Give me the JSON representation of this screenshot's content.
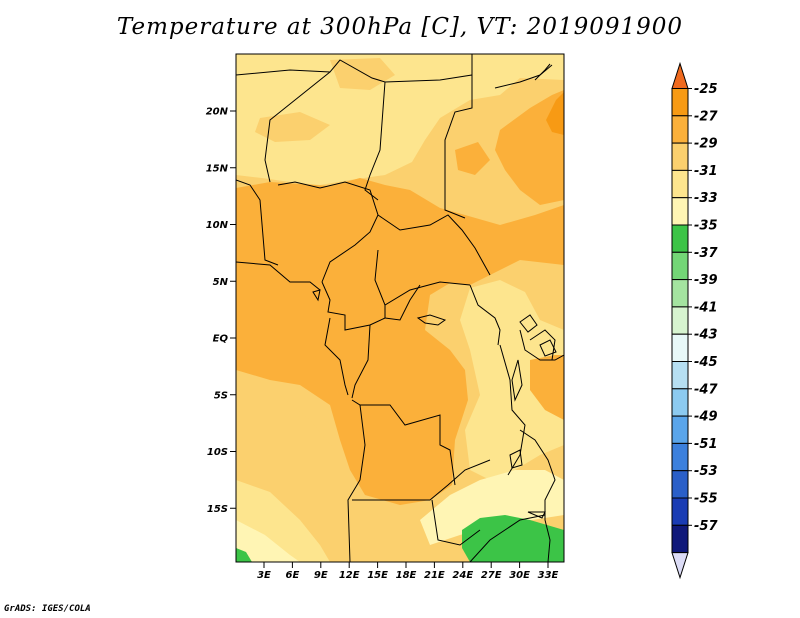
{
  "title": "Temperature at 300hPa [C], VT: 2019091900",
  "credit": "GrADS: IGES/COLA",
  "map": {
    "lat_ticks": [
      "20N",
      "15N",
      "10N",
      "5N",
      "EQ",
      "5S",
      "10S",
      "15S"
    ],
    "lon_ticks": [
      "3E",
      "6E",
      "9E",
      "12E",
      "15E",
      "18E",
      "21E",
      "24E",
      "27E",
      "30E",
      "33E"
    ]
  },
  "colorbar": {
    "labels": [
      "-25",
      "-27",
      "-29",
      "-31",
      "-33",
      "-35",
      "-37",
      "-39",
      "-41",
      "-43",
      "-45",
      "-47",
      "-49",
      "-51",
      "-53",
      "-55",
      "-57"
    ],
    "colors": [
      "#f06a1e",
      "#f79a14",
      "#fbb03a",
      "#fbd06e",
      "#fde58e",
      "#fff5b4",
      "#3cc447",
      "#73d676",
      "#a4e4a0",
      "#d7f4d0",
      "#e8f8f8",
      "#b6dff2",
      "#8ccaf0",
      "#5aa5ea",
      "#3c80dc",
      "#2a5fc8",
      "#1a3cb4",
      "#10197a",
      "#dcdcf6"
    ]
  },
  "fields": {
    "colors": {
      "c29": "#fbb03a",
      "c31": "#fbd06e",
      "c33": "#fde58e",
      "c35": "#fff5b4",
      "c37": "#3cc447"
    }
  }
}
